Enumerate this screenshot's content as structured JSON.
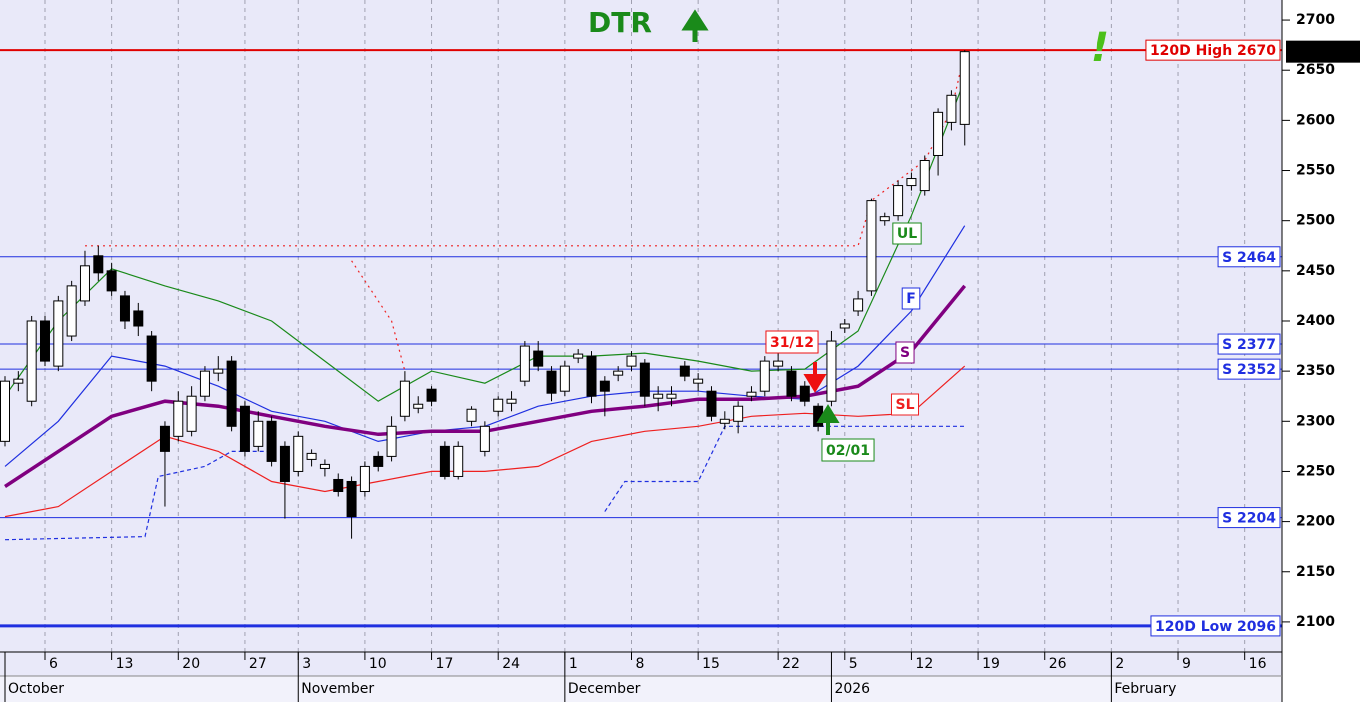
{
  "chart_data": {
    "type": "candlestick",
    "title": "DTR",
    "xlim": [
      -0.375,
      95.8
    ],
    "ylim": [
      2070,
      2720
    ],
    "yticks": [
      2100,
      2150,
      2200,
      2250,
      2300,
      2350,
      2400,
      2450,
      2500,
      2550,
      2600,
      2650,
      2700
    ],
    "xticks": [
      {
        "value": 3,
        "label": "6"
      },
      {
        "value": 8,
        "label": "13"
      },
      {
        "value": 13,
        "label": "20"
      },
      {
        "value": 18,
        "label": "27"
      },
      {
        "value": 22,
        "label": "3"
      },
      {
        "value": 27,
        "label": "10"
      },
      {
        "value": 32,
        "label": "17"
      },
      {
        "value": 37,
        "label": "24"
      },
      {
        "value": 42,
        "label": "1"
      },
      {
        "value": 47,
        "label": "8"
      },
      {
        "value": 52,
        "label": "15"
      },
      {
        "value": 58,
        "label": "22"
      },
      {
        "value": 63,
        "label": "5"
      },
      {
        "value": 68,
        "label": "12"
      },
      {
        "value": 73,
        "label": "19"
      },
      {
        "value": 78,
        "label": "26"
      },
      {
        "value": 83,
        "label": "2"
      },
      {
        "value": 88,
        "label": "9"
      },
      {
        "value": 93,
        "label": "16"
      }
    ],
    "months": [
      {
        "value": 0,
        "label": "October"
      },
      {
        "value": 22,
        "label": "November"
      },
      {
        "value": 42,
        "label": "December"
      },
      {
        "value": 62,
        "label": "2026"
      },
      {
        "value": 83,
        "label": "February"
      }
    ],
    "grid": "x",
    "up_color": "#ffffff",
    "down_color": "#000000",
    "x": [
      0,
      1,
      2,
      3,
      4,
      5,
      6,
      7,
      8,
      9,
      10,
      11,
      12,
      13,
      14,
      15,
      16,
      17,
      18,
      19,
      20,
      21,
      22,
      23,
      24,
      25,
      26,
      27,
      28,
      29,
      30,
      31,
      32,
      33,
      34,
      35,
      36,
      37,
      38,
      39,
      40,
      41,
      42,
      43,
      44,
      45,
      46,
      47,
      48,
      49,
      50,
      51,
      52,
      53,
      54,
      55,
      56,
      57,
      58,
      59,
      60,
      61,
      62,
      63,
      64,
      65,
      66,
      67,
      68,
      69,
      70,
      71,
      72
    ],
    "open": [
      2280,
      2338,
      2320,
      2400,
      2355,
      2385,
      2420,
      2465,
      2450,
      2425,
      2410,
      2385,
      2295,
      2285,
      2290,
      2325,
      2348,
      2360,
      2315,
      2275,
      2300,
      2275,
      2250,
      2262,
      2253,
      2242,
      2240,
      2230,
      2265,
      2265,
      2305,
      2313,
      2332,
      2275,
      2245,
      2300,
      2270,
      2310,
      2318,
      2340,
      2370,
      2350,
      2330,
      2363,
      2365,
      2340,
      2346,
      2355,
      2358,
      2323,
      2323,
      2355,
      2338,
      2330,
      2298,
      2300,
      2325,
      2330,
      2355,
      2350,
      2335,
      2315,
      2320,
      2393,
      2410,
      2430,
      2500,
      2505,
      2535,
      2530,
      2565,
      2598,
      2596
    ],
    "high": [
      2345,
      2350,
      2405,
      2405,
      2425,
      2440,
      2470,
      2475,
      2458,
      2430,
      2418,
      2390,
      2300,
      2330,
      2335,
      2355,
      2365,
      2365,
      2320,
      2310,
      2305,
      2280,
      2290,
      2272,
      2262,
      2248,
      2245,
      2260,
      2270,
      2305,
      2350,
      2325,
      2335,
      2280,
      2280,
      2315,
      2300,
      2325,
      2330,
      2380,
      2380,
      2355,
      2360,
      2372,
      2370,
      2345,
      2355,
      2370,
      2362,
      2335,
      2335,
      2360,
      2348,
      2335,
      2310,
      2320,
      2335,
      2365,
      2368,
      2355,
      2340,
      2318,
      2390,
      2402,
      2430,
      2522,
      2508,
      2540,
      2548,
      2565,
      2612,
      2630,
      2670
    ],
    "low": [
      2275,
      2330,
      2315,
      2355,
      2350,
      2380,
      2415,
      2440,
      2425,
      2392,
      2385,
      2330,
      2215,
      2280,
      2285,
      2320,
      2340,
      2290,
      2265,
      2270,
      2255,
      2203,
      2245,
      2255,
      2245,
      2225,
      2183,
      2225,
      2250,
      2260,
      2300,
      2308,
      2315,
      2242,
      2242,
      2295,
      2265,
      2305,
      2310,
      2335,
      2350,
      2320,
      2325,
      2358,
      2318,
      2305,
      2340,
      2350,
      2315,
      2310,
      2315,
      2340,
      2330,
      2300,
      2292,
      2288,
      2320,
      2325,
      2350,
      2320,
      2315,
      2290,
      2315,
      2388,
      2405,
      2425,
      2495,
      2500,
      2530,
      2525,
      2545,
      2590,
      2575
    ],
    "close": [
      2340,
      2342,
      2400,
      2360,
      2420,
      2435,
      2455,
      2448,
      2430,
      2400,
      2395,
      2340,
      2270,
      2320,
      2325,
      2350,
      2352,
      2295,
      2270,
      2300,
      2260,
      2240,
      2285,
      2268,
      2257,
      2230,
      2205,
      2255,
      2255,
      2295,
      2340,
      2317,
      2320,
      2245,
      2275,
      2312,
      2295,
      2322,
      2322,
      2375,
      2355,
      2328,
      2355,
      2367,
      2325,
      2330,
      2350,
      2365,
      2325,
      2327,
      2327,
      2345,
      2342,
      2305,
      2302,
      2315,
      2329,
      2360,
      2360,
      2325,
      2320,
      2295,
      2380,
      2397,
      2422,
      2520,
      2504,
      2535,
      2542,
      2560,
      2608,
      2625,
      2668.5
    ],
    "series": [
      {
        "name": "UL",
        "color": "#1a8a1a",
        "width": 1.2,
        "x": [
          0,
          4,
          8,
          12,
          16,
          20,
          24,
          28,
          32,
          36,
          40,
          44,
          48,
          52,
          56,
          60,
          64,
          68,
          72
        ],
        "values": [
          2325,
          2400,
          2452,
          2435,
          2420,
          2400,
          2360,
          2320,
          2350,
          2338,
          2365,
          2365,
          2368,
          2360,
          2350,
          2352,
          2390,
          2505,
          2640
        ]
      },
      {
        "name": "F",
        "color": "#1f2fe0",
        "width": 1.2,
        "x": [
          0,
          4,
          8,
          12,
          16,
          20,
          24,
          28,
          32,
          36,
          40,
          44,
          48,
          52,
          56,
          60,
          64,
          68,
          72
        ],
        "values": [
          2255,
          2300,
          2365,
          2355,
          2335,
          2310,
          2300,
          2280,
          2290,
          2295,
          2315,
          2325,
          2330,
          2330,
          2325,
          2322,
          2355,
          2410,
          2495
        ]
      },
      {
        "name": "S",
        "color": "#800080",
        "width": 3.5,
        "x": [
          0,
          4,
          8,
          12,
          16,
          20,
          24,
          28,
          32,
          36,
          40,
          44,
          48,
          52,
          56,
          60,
          64,
          68,
          72
        ],
        "values": [
          2235,
          2270,
          2305,
          2320,
          2315,
          2305,
          2295,
          2287,
          2290,
          2290,
          2300,
          2310,
          2315,
          2322,
          2322,
          2325,
          2335,
          2370,
          2435
        ]
      },
      {
        "name": "SL",
        "color": "#ee2020",
        "width": 1.2,
        "x": [
          0,
          4,
          8,
          12,
          16,
          20,
          24,
          28,
          32,
          36,
          40,
          44,
          48,
          52,
          56,
          60,
          64,
          68,
          72
        ],
        "values": [
          2205,
          2215,
          2250,
          2285,
          2270,
          2240,
          2230,
          2240,
          2250,
          2250,
          2255,
          2280,
          2290,
          2295,
          2305,
          2308,
          2305,
          2308,
          2355
        ]
      },
      {
        "color": "#ee2020",
        "width": 1.2,
        "dash": "2 4",
        "x": [
          6,
          64,
          65,
          67,
          69,
          71,
          72,
          null,
          26,
          29,
          30
        ],
        "values": [
          2475,
          2475,
          2520,
          2540,
          2560,
          2610,
          2668,
          null,
          2460,
          2400,
          2350
        ]
      },
      {
        "color": "#1f2fe0",
        "width": 1.2,
        "dash": "4 3",
        "x": [
          0,
          10.5,
          11.5,
          15,
          17,
          20,
          null,
          45,
          46.5,
          52,
          54,
          72
        ],
        "values": [
          2182,
          2185,
          2245,
          2255,
          2270,
          2270,
          null,
          2210,
          2240,
          2240,
          2295,
          2295
        ]
      }
    ],
    "levels": [
      {
        "value": 2670,
        "label": "120D High 2670",
        "color": "#e00000",
        "width": 2
      },
      {
        "value": 2464,
        "label": "S 2464",
        "color": "#1f2fe0",
        "width": 1
      },
      {
        "value": 2377,
        "label": "S 2377",
        "color": "#1f2fe0",
        "width": 1
      },
      {
        "value": 2352,
        "label": "S 2352",
        "color": "#1f2fe0",
        "width": 1
      },
      {
        "value": 2204,
        "label": "S 2204",
        "color": "#1f2fe0",
        "width": 1
      },
      {
        "value": 2096,
        "label": "120D Low 2096",
        "color": "#1f2fe0",
        "width": 3
      }
    ],
    "last_price": {
      "value": 2668.5,
      "label": "2668.50"
    },
    "annotations": {
      "alert": "!",
      "down_signal": "31/12",
      "up_signal": "02/01"
    }
  }
}
